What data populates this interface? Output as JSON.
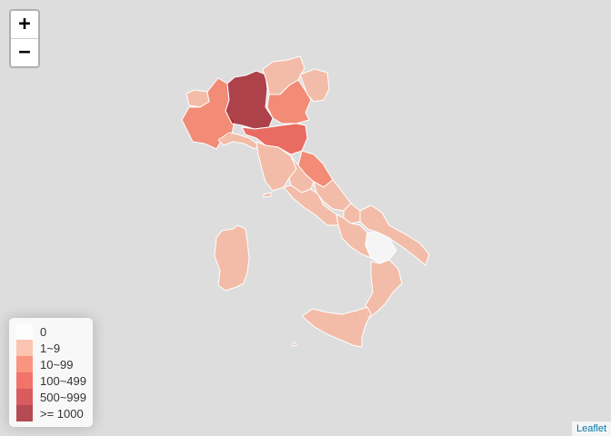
{
  "zoom": {
    "in_label": "+",
    "out_label": "−"
  },
  "legend": {
    "items": [
      {
        "label": "0",
        "color": "#ffffff"
      },
      {
        "label": "1~9",
        "color": "#fcae91"
      },
      {
        "label": "10~99",
        "color": "#fb6a4a"
      },
      {
        "label": "100~499",
        "color": "#ef3b2c"
      },
      {
        "label": "500~999",
        "color": "#cb181d"
      },
      {
        "label": ">= 1000",
        "color": "#99000d"
      }
    ]
  },
  "regions": [
    {
      "name": "Valle d'Aosta",
      "bin": 1
    },
    {
      "name": "Piemonte",
      "bin": 2
    },
    {
      "name": "Lombardia",
      "bin": 5
    },
    {
      "name": "Trentino-Alto Adige",
      "bin": 1
    },
    {
      "name": "Veneto",
      "bin": 2
    },
    {
      "name": "Friuli-Venezia Giulia",
      "bin": 1
    },
    {
      "name": "Liguria",
      "bin": 1
    },
    {
      "name": "Emilia-Romagna",
      "bin": 3
    },
    {
      "name": "Toscana",
      "bin": 1
    },
    {
      "name": "Marche",
      "bin": 2
    },
    {
      "name": "Umbria",
      "bin": 1
    },
    {
      "name": "Lazio",
      "bin": 1
    },
    {
      "name": "Abruzzo",
      "bin": 1
    },
    {
      "name": "Molise",
      "bin": 1
    },
    {
      "name": "Campania",
      "bin": 1
    },
    {
      "name": "Puglia",
      "bin": 1
    },
    {
      "name": "Basilicata",
      "bin": 0
    },
    {
      "name": "Calabria",
      "bin": 1
    },
    {
      "name": "Sicilia",
      "bin": 1
    },
    {
      "name": "Sardegna",
      "bin": 1
    }
  ],
  "attribution": "Leaflet"
}
